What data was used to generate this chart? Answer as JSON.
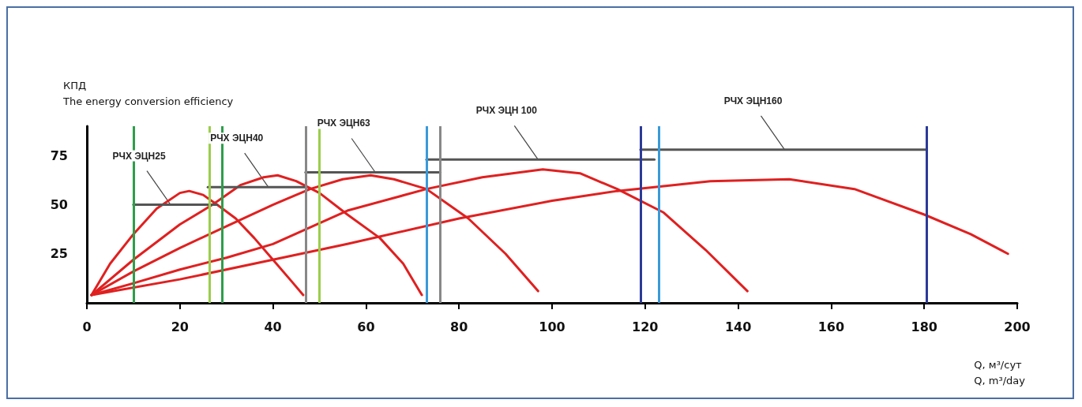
{
  "chart_data": {
    "type": "line",
    "ylabel": "КПД\nThe energy conversion efficiency",
    "xlabel": "Q, м³/сут\nQ, m³/day",
    "xlim": [
      0,
      200
    ],
    "xticks": [
      0,
      20,
      40,
      60,
      80,
      100,
      120,
      140,
      160,
      180,
      200
    ],
    "ylim": [
      0,
      90
    ],
    "yticks": [
      25,
      50,
      75
    ],
    "grid": false,
    "marker": "none",
    "line_style": "solid",
    "series": [
      {
        "color": "#e02020",
        "x": [
          1,
          5,
          10,
          15,
          20,
          22,
          25,
          28,
          32,
          36,
          40,
          44,
          46.5
        ],
        "values": [
          4,
          20,
          35,
          48,
          56,
          57,
          55,
          50,
          43,
          33,
          22,
          11,
          4
        ]
      },
      {
        "color": "#e02020",
        "x": [
          1,
          10,
          20,
          27,
          33,
          38,
          41,
          45,
          50,
          56,
          63,
          68,
          72
        ],
        "values": [
          4,
          22,
          40,
          50,
          60,
          64,
          65,
          62,
          56,
          45,
          33,
          20,
          4
        ]
      },
      {
        "color": "#e02020",
        "x": [
          1,
          10,
          20,
          30,
          40,
          48,
          55,
          61,
          66,
          73,
          82,
          90,
          97
        ],
        "values": [
          4,
          16,
          28,
          39,
          50,
          58,
          63,
          65,
          63,
          58,
          43,
          25,
          6
        ]
      },
      {
        "color": "#e02020",
        "x": [
          1,
          10,
          20,
          30,
          40,
          56,
          73,
          85,
          98,
          106,
          114,
          124,
          133,
          142
        ],
        "values": [
          4,
          10,
          17,
          23,
          30,
          47,
          58,
          64,
          68,
          66,
          58,
          46,
          27,
          6
        ]
      },
      {
        "color": "#e02020",
        "x": [
          1,
          20,
          40,
          56,
          80,
          100,
          114,
          134,
          151,
          165,
          180,
          190,
          198
        ],
        "values": [
          4,
          12,
          22,
          30,
          43,
          52,
          57,
          62,
          63,
          58,
          45,
          35,
          25
        ]
      },
      {
        "color": "#555555",
        "x": [
          10,
          28
        ],
        "values": [
          50,
          50
        ]
      },
      {
        "color": "#555555",
        "x": [
          26,
          47
        ],
        "values": [
          59,
          59
        ]
      },
      {
        "color": "#555555",
        "x": [
          47,
          76
        ],
        "values": [
          66.5,
          66.5
        ]
      },
      {
        "color": "#555555",
        "x": [
          73,
          122
        ],
        "values": [
          73,
          73
        ]
      },
      {
        "color": "#555555",
        "x": [
          119,
          180.5
        ],
        "values": [
          78,
          78
        ]
      }
    ],
    "ref_lines": [
      {
        "axis": "x",
        "value": 10,
        "color": "#2e9e4a"
      },
      {
        "axis": "x",
        "value": 29,
        "color": "#2e9e4a"
      },
      {
        "axis": "x",
        "value": 26.3,
        "color": "#9acd4c"
      },
      {
        "axis": "x",
        "value": 50,
        "color": "#9acd4c"
      },
      {
        "axis": "x",
        "value": 47,
        "color": "#888888"
      },
      {
        "axis": "x",
        "value": 76,
        "color": "#888888"
      },
      {
        "axis": "x",
        "value": 73,
        "color": "#3a9ad9"
      },
      {
        "axis": "x",
        "value": 123,
        "color": "#3a9ad9"
      },
      {
        "axis": "x",
        "value": 119,
        "color": "#2b3a99"
      },
      {
        "axis": "x",
        "value": 180.5,
        "color": "#2b3a99"
      }
    ],
    "annotations": [
      {
        "text": "РЧХ ЭЦН25",
        "x": 18,
        "y": 50
      },
      {
        "text": "РЧХ ЭЦН40",
        "x": 39,
        "y": 59
      },
      {
        "text": "РЧХ ЭЦН63",
        "x": 62,
        "y": 66.5
      },
      {
        "text": "РЧХ ЭЦН 100",
        "x": 97,
        "y": 73
      },
      {
        "text": "РЧХ ЭЦН160",
        "x": 150,
        "y": 78
      }
    ]
  }
}
